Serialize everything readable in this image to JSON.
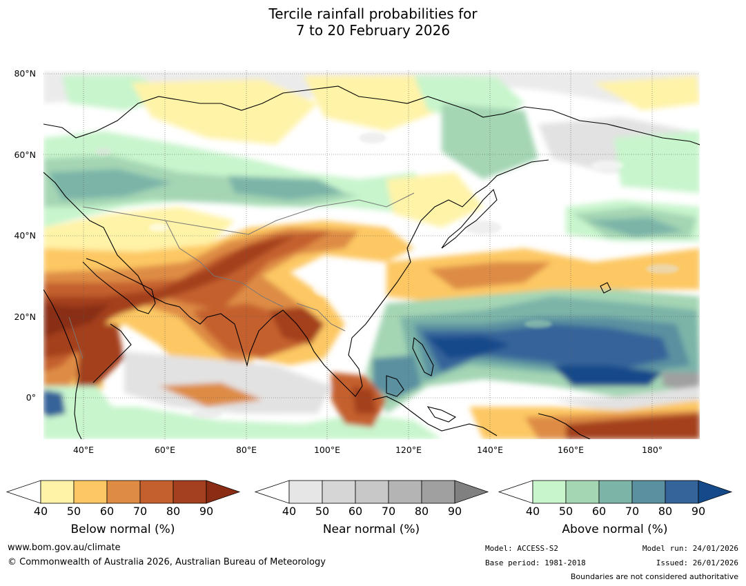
{
  "title": {
    "line1": "Tercile rainfall probabilities for",
    "line2": "7 to 20 February 2026"
  },
  "map": {
    "lat_labels": [
      "80°N",
      "60°N",
      "40°N",
      "20°N",
      "0°"
    ],
    "lon_labels": [
      "40°E",
      "60°E",
      "80°E",
      "100°E",
      "120°E",
      "140°E",
      "160°E",
      "180°"
    ]
  },
  "legends": [
    {
      "id": "below",
      "title": "Below normal (%)",
      "ticks": [
        "40",
        "50",
        "60",
        "70",
        "80",
        "90"
      ],
      "colors": [
        "#fff3a8",
        "#fdc864",
        "#de8c44",
        "#c4602e",
        "#a43f1f",
        "#8a2d14"
      ]
    },
    {
      "id": "near",
      "title": "Near normal (%)",
      "ticks": [
        "40",
        "50",
        "60",
        "70",
        "80",
        "90"
      ],
      "colors": [
        "#e6e6e6",
        "#d6d6d6",
        "#c8c8c8",
        "#b4b4b4",
        "#a0a0a0",
        "#808080"
      ]
    },
    {
      "id": "above",
      "title": "Above normal (%)",
      "ticks": [
        "40",
        "50",
        "60",
        "70",
        "80",
        "90"
      ],
      "colors": [
        "#c8f5cc",
        "#a4d6b4",
        "#7cb4a8",
        "#5a90a0",
        "#34649a",
        "#154a8a"
      ]
    }
  ],
  "footer": {
    "url": "www.bom.gov.au/climate",
    "copyright": "© Commonwealth of Australia 2026, Australian Bureau of Meteorology",
    "model": "Model: ACCESS-S2",
    "base_period": "Base period: 1981-2018",
    "model_run": "Model run: 24/01/2026",
    "issued": "Issued: 26/01/2026",
    "disclaimer": "Boundaries are not considered authoritative"
  }
}
